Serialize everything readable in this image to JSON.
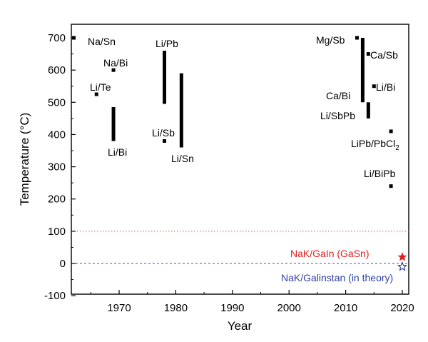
{
  "chart_data": {
    "type": "scatter",
    "xlabel": "Year",
    "ylabel": "Temperature (°C)",
    "xlim": [
      1960,
      2023
    ],
    "ylim": [
      -100,
      750
    ],
    "x_ticks": [
      1970,
      1980,
      1990,
      2000,
      2010,
      2020
    ],
    "y_ticks": [
      -100,
      0,
      100,
      200,
      300,
      400,
      500,
      600,
      700
    ],
    "grid": false,
    "points": [
      {
        "name": "Na/Sn",
        "x": 1962,
        "y": 700
      },
      {
        "name": "Na/Bi",
        "x": 1969,
        "y": 600
      },
      {
        "name": "Li/Te",
        "x": 1966,
        "y": 525
      },
      {
        "name": "Li/Sb",
        "x": 1978,
        "y": 380
      },
      {
        "name": "Mg/Sb",
        "x": 2012,
        "y": 700
      },
      {
        "name": "Ca/Sb",
        "x": 2014,
        "y": 650
      },
      {
        "name": "Li/Bi",
        "x": 2015,
        "y": 550
      },
      {
        "name": "LiPb/PbCl2",
        "x": 2018,
        "y": 410
      },
      {
        "name": "Li/BiPb",
        "x": 2018,
        "y": 240
      }
    ],
    "ranges": [
      {
        "name": "Li/Bi",
        "x": 1969,
        "y_min": 380,
        "y_max": 485
      },
      {
        "name": "Li/Pb",
        "x": 1978,
        "y_min": 495,
        "y_max": 660
      },
      {
        "name": "Li/Sn",
        "x": 1981,
        "y_min": 360,
        "y_max": 590
      },
      {
        "name": "Ca/Bi",
        "x": 2013,
        "y_min": 500,
        "y_max": 700
      },
      {
        "name": "Li/SbPb",
        "x": 2014,
        "y_min": 450,
        "y_max": 500
      }
    ],
    "reference_lines": [
      {
        "y": 100,
        "color": "#e05050",
        "style": "dotted"
      },
      {
        "y": 0,
        "color": "#4050b0",
        "style": "dashed"
      }
    ],
    "special_markers": [
      {
        "name": "NaK/GaIn (GaSn)",
        "x": 2020,
        "y": 20,
        "marker": "filled-star",
        "color": "#e02020"
      },
      {
        "name": "NaK/Galinstan (in theory)",
        "x": 2020,
        "y": -10,
        "marker": "open-star",
        "color": "#3040a0"
      }
    ]
  },
  "labels": {
    "na_sn": "Na/Sn",
    "na_bi": "Na/Bi",
    "li_te": "Li/Te",
    "li_bi_left": "Li/Bi",
    "li_pb": "Li/Pb",
    "li_sb": "Li/Sb",
    "li_sn": "Li/Sn",
    "mg_sb": "Mg/Sb",
    "ca_sb": "Ca/Sb",
    "ca_bi": "Ca/Bi",
    "li_bi_right": "Li/Bi",
    "li_sbpb": "Li/SbPb",
    "lipb_pbcl_main": "LiPb/PbCl",
    "lipb_pbcl_sub": "2",
    "li_bipb": "Li/BiPb",
    "nak_gain": "NaK/GaIn (GaSn)",
    "nak_galinstan": "NaK/Galinstan (in theory)"
  },
  "colors": {
    "red": "#e02020",
    "blue": "#3040a0"
  }
}
